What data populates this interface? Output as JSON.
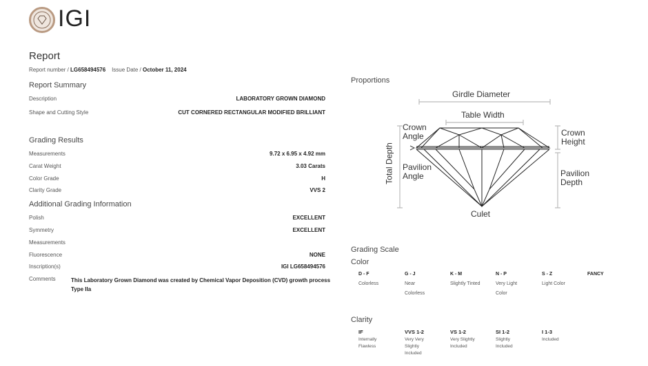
{
  "header": {
    "logo_text": "IGI"
  },
  "report": {
    "title": "Report",
    "number_label": "Report number / ",
    "number": "LG658494576",
    "date_label": "Issue Date / ",
    "date": "October 11, 2024"
  },
  "summary": {
    "title": "Report Summary",
    "rows": [
      {
        "label": "Description",
        "value": "LABORATORY GROWN DIAMOND"
      },
      {
        "label": "Shape and Cutting Style",
        "value": "CUT CORNERED RECTANGULAR MODIFIED BRILLIANT"
      }
    ]
  },
  "grading": {
    "title": "Grading Results",
    "rows": [
      {
        "label": "Measurements",
        "value": "9.72 x 6.95 x 4.92 mm"
      },
      {
        "label": "Carat Weight",
        "value": "3.03 Carats"
      },
      {
        "label": "Color Grade",
        "value": "H"
      },
      {
        "label": "Clarity Grade",
        "value": "VVS 2"
      }
    ]
  },
  "additional": {
    "title": "Additional Grading Information",
    "rows": [
      {
        "label": "Polish",
        "value": "EXCELLENT"
      },
      {
        "label": "Symmetry",
        "value": "EXCELLENT"
      },
      {
        "label": "Measurements",
        "value": ""
      },
      {
        "label": "Fluorescence",
        "value": "NONE"
      },
      {
        "label": "Inscription(s)",
        "value": "IGI LG658494576"
      }
    ],
    "comments_label": "Comments",
    "comments": "This Laboratory Grown Diamond was created by Chemical Vapor Deposition (CVD) growth process Type IIa"
  },
  "proportions": {
    "title": "Proportions",
    "labels": {
      "girdle": "Girdle Diameter",
      "table": "Table Width",
      "crown_angle": "Crown Angle",
      "total_depth": "Total Depth",
      "pavilion_angle": "Pavilion Angle",
      "culet": "Culet",
      "crown_height": "Crown Height",
      "pavilion_depth": "Pavilion Depth"
    }
  },
  "grading_scale": {
    "title": "Grading Scale",
    "color_title": "Color",
    "color": [
      {
        "grade": "D - F",
        "desc": "Colorless"
      },
      {
        "grade": "G - J",
        "desc": "Near Colorless"
      },
      {
        "grade": "K - M",
        "desc": "Slightly Tinted"
      },
      {
        "grade": "N - P",
        "desc": "Very Light Color"
      },
      {
        "grade": "S - Z",
        "desc": "Light Color"
      },
      {
        "grade": "FANCY",
        "desc": ""
      }
    ],
    "clarity_title": "Clarity",
    "clarity": [
      {
        "grade": "IF",
        "desc": "Internally Flawless"
      },
      {
        "grade": "VVS 1-2",
        "desc": "Very Very Slightly Included"
      },
      {
        "grade": "VS 1-2",
        "desc": "Very Slightly Included"
      },
      {
        "grade": "SI 1-2",
        "desc": "Slightly Included"
      },
      {
        "grade": "I 1-3",
        "desc": "Included"
      }
    ]
  }
}
